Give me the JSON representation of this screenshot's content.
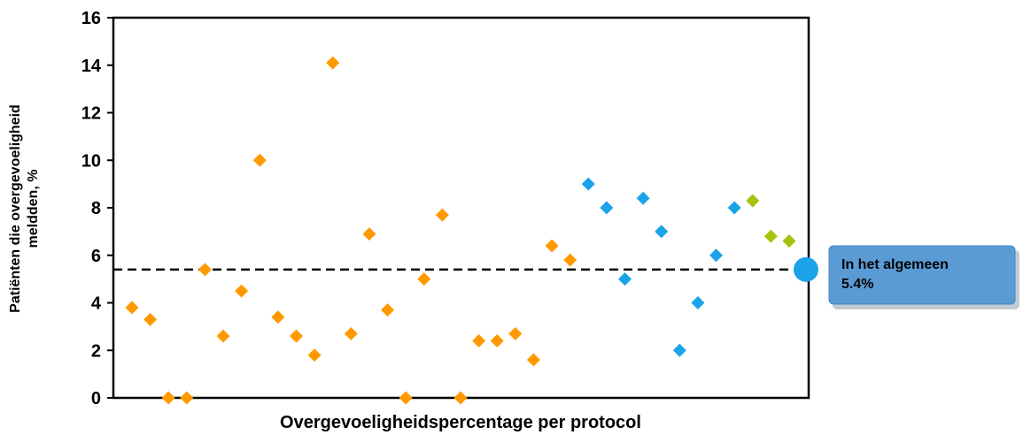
{
  "chart_data": {
    "type": "scatter",
    "title": "",
    "xlabel": "Overgevoeligheidspercentage per protocol",
    "ylabel_line1": "Patiënten die overgevoeligheid",
    "ylabel_line2": "meldden, %",
    "ylim": [
      0,
      16
    ],
    "yticks": [
      "0",
      "2",
      "4",
      "6",
      "8",
      "10",
      "12",
      "14",
      "16"
    ],
    "grid": false,
    "colors": {
      "orange": "#FF9900",
      "blue": "#1AA3E8",
      "green": "#A6C40E",
      "callout": "#5B9BD5"
    },
    "series": [
      {
        "color": "orange",
        "values": [
          3.8,
          3.3,
          0,
          0,
          5.4,
          2.6,
          4.5,
          10,
          3.4,
          2.6,
          1.8,
          14.1,
          2.7,
          6.9,
          3.7,
          0,
          5.0,
          7.7,
          0,
          2.4,
          2.4,
          2.7,
          1.6,
          6.4,
          5.8
        ]
      },
      {
        "color": "blue",
        "values": [
          9.0,
          8.0,
          5.0,
          8.4,
          7.0,
          2.0,
          4.0,
          6.0,
          8.0
        ]
      },
      {
        "color": "green",
        "values": [
          8.3,
          6.8,
          6.6
        ]
      }
    ],
    "reference_line": {
      "value": 5.4,
      "style": "dashed"
    },
    "callout": {
      "line1": "In het algemeen",
      "line2": "5.4%"
    }
  }
}
